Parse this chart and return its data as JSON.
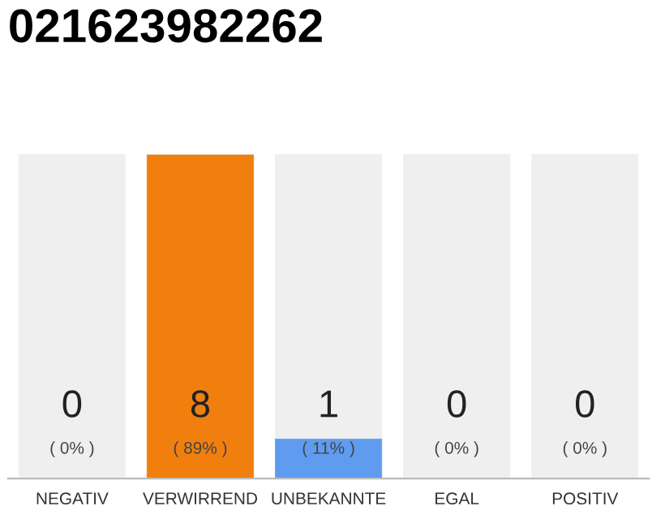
{
  "chart_data": {
    "type": "bar",
    "title": "021623982262",
    "stacked": true,
    "ylim": [
      0,
      89
    ],
    "categories": [
      "NEGATIV",
      "VERWIRREND",
      "UNBEKANNTE",
      "EGAL",
      "POSITIV"
    ],
    "series": [
      {
        "values": [
          0,
          89,
          11,
          0,
          0
        ],
        "colors": [
          "#f07f0e",
          "#f07f0e",
          "#5f9cef",
          "#f07f0e",
          "#f07f0e"
        ],
        "value_labels": [
          "0\n( 0% )",
          "8\n( 89% )",
          "1\n( 11% )",
          "0\n( 0% )",
          "0\n( 0% )"
        ]
      },
      {
        "values": [
          89,
          0,
          78,
          89,
          89
        ],
        "color": "#efefef"
      }
    ],
    "grid": false,
    "legend": false
  }
}
